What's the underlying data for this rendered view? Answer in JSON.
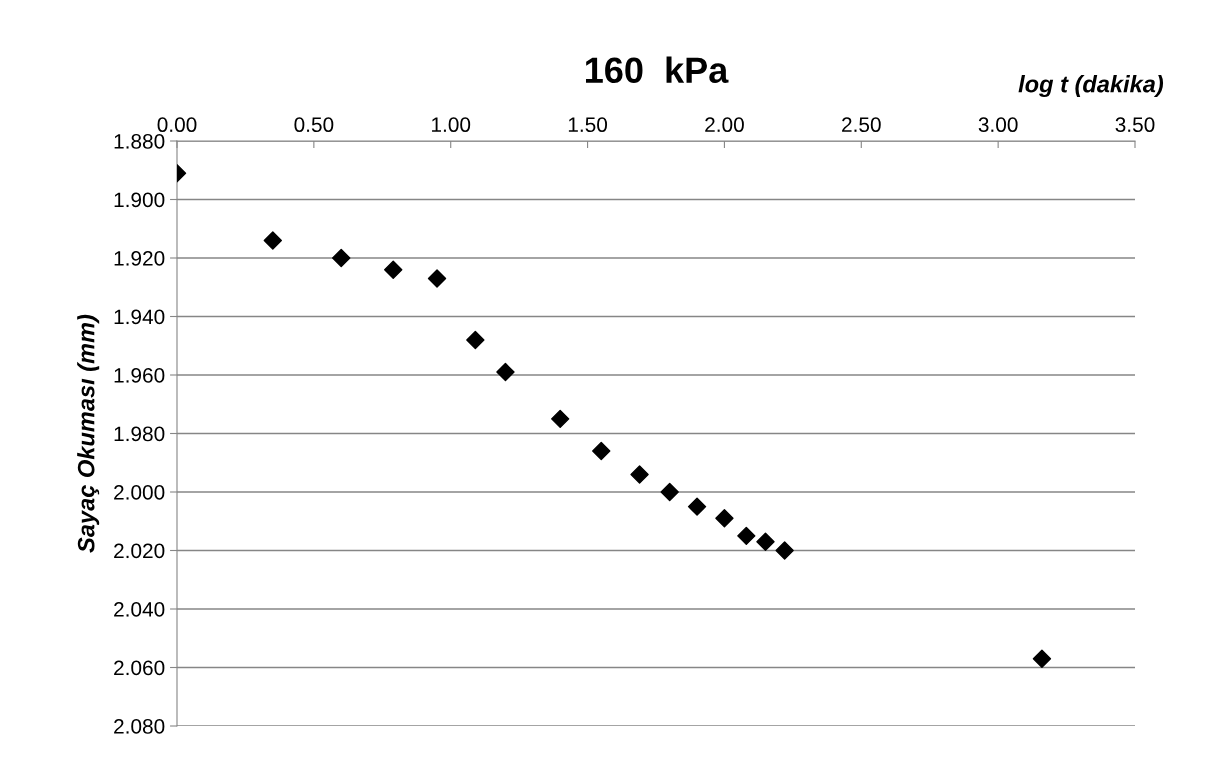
{
  "chart_data": {
    "type": "scatter",
    "title": "160  kPa",
    "xlabel": "log t (dakika)",
    "ylabel": "Sayaç Okuması (mm)",
    "x": [
      0.0,
      0.35,
      0.6,
      0.79,
      0.95,
      1.09,
      1.2,
      1.4,
      1.55,
      1.69,
      1.8,
      1.9,
      2.0,
      2.08,
      2.15,
      2.22,
      3.16
    ],
    "series": [
      {
        "color": "#000000",
        "values": [
          1.891,
          1.914,
          1.92,
          1.924,
          1.927,
          1.948,
          1.959,
          1.975,
          1.986,
          1.994,
          2.0,
          2.005,
          2.009,
          2.015,
          2.017,
          2.02,
          2.057
        ]
      }
    ],
    "xlim": [
      0,
      3.5
    ],
    "xticks": [
      {
        "value": 0,
        "label": "0.00"
      },
      {
        "value": 0.5,
        "label": "0.50"
      },
      {
        "value": 1,
        "label": "1.00"
      },
      {
        "value": 1.5,
        "label": "1.50"
      },
      {
        "value": 2,
        "label": "2.00"
      },
      {
        "value": 2.5,
        "label": "2.50"
      },
      {
        "value": 3,
        "label": "3.00"
      },
      {
        "value": 3.5,
        "label": "3.50"
      }
    ],
    "ylim": [
      2.08,
      1.88
    ],
    "yticks": [
      {
        "value": 1.88,
        "label": "1.880"
      },
      {
        "value": 1.9,
        "label": "1.900"
      },
      {
        "value": 1.92,
        "label": "1.920"
      },
      {
        "value": 1.94,
        "label": "1.940"
      },
      {
        "value": 1.96,
        "label": "1.960"
      },
      {
        "value": 1.98,
        "label": "1.980"
      },
      {
        "value": 2.0,
        "label": "2.000"
      },
      {
        "value": 2.02,
        "label": "2.020"
      },
      {
        "value": 2.04,
        "label": "2.040"
      },
      {
        "value": 2.06,
        "label": "2.060"
      },
      {
        "value": 2.08,
        "label": "2.080"
      }
    ],
    "grid": "y",
    "marker": "diamond",
    "legend": false
  }
}
